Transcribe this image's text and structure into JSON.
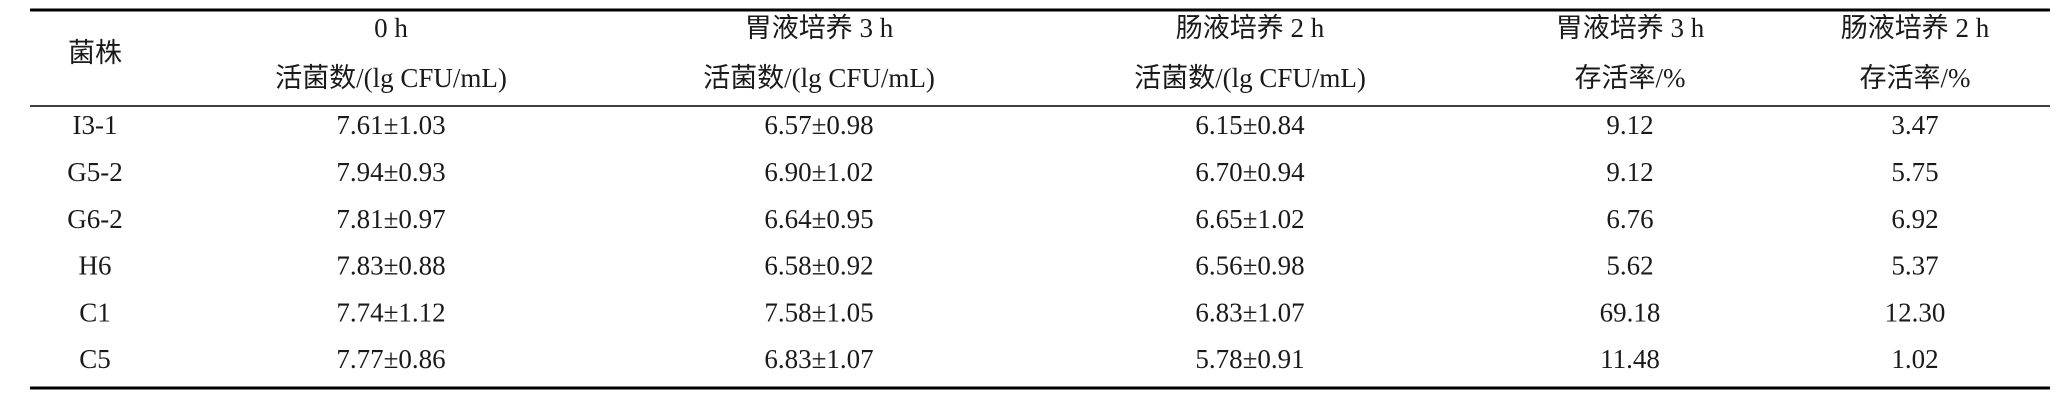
{
  "table": {
    "header": [
      [
        "菌株"
      ],
      [
        "0 h",
        "活菌数/(lg CFU/mL)"
      ],
      [
        "胃液培养 3 h",
        "活菌数/(lg CFU/mL)"
      ],
      [
        "肠液培养 2 h",
        "活菌数/(lg CFU/mL)"
      ],
      [
        "胃液培养 3 h",
        "存活率/%"
      ],
      [
        "肠液培养 2 h",
        "存活率/%"
      ]
    ],
    "rows": [
      [
        "I3-1",
        "7.61±1.03",
        "6.57±0.98",
        "6.15±0.84",
        "9.12",
        "3.47"
      ],
      [
        "G5-2",
        "7.94±0.93",
        "6.90±1.02",
        "6.70±0.94",
        "9.12",
        "5.75"
      ],
      [
        "G6-2",
        "7.81±0.97",
        "6.64±0.95",
        "6.65±1.02",
        "6.76",
        "6.92"
      ],
      [
        "H6",
        "7.83±0.88",
        "6.58±0.92",
        "6.56±0.98",
        "5.62",
        "5.37"
      ],
      [
        "C1",
        "7.74±1.12",
        "7.58±1.05",
        "6.83±1.07",
        "69.18",
        "12.30"
      ],
      [
        "C5",
        "7.77±0.86",
        "6.83±1.07",
        "5.78±0.91",
        "11.48",
        "1.02"
      ]
    ]
  }
}
